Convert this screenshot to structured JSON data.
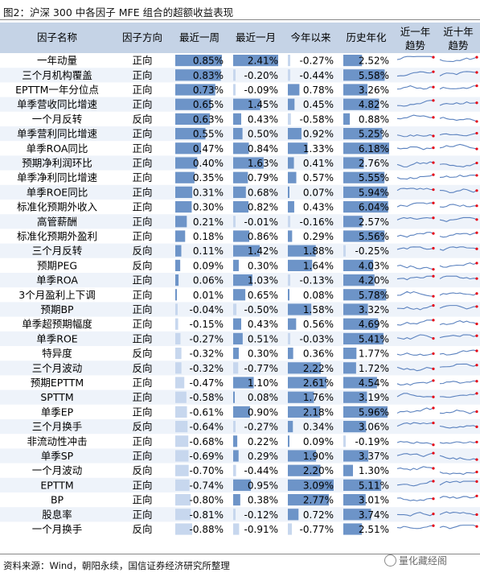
{
  "title": "图2：沪深 300 中各因子 MFE 组合的超额收益表现",
  "source": "资料来源：Wind，朝阳永续，国信证券经济研究所整理",
  "watermark": "量化藏经阁",
  "colors": {
    "header_bg": "#c5d3e6",
    "row_alt": "#eef3fa",
    "bar": "#6d94c8",
    "bar_light": "#c7d7ee",
    "spark": "#5b82bf",
    "spark_dot": "#e60012"
  },
  "chart_data": {
    "type": "table",
    "columns": [
      "因子名称",
      "因子方向",
      "最近一周",
      "最近一月",
      "今年以来",
      "历史年化",
      "近一年趋势",
      "近十年趋势"
    ],
    "rows": [
      {
        "name": "一年动量",
        "dir": "正向",
        "week": "0.85%",
        "month": "2.41%",
        "ytd": "-0.27%",
        "annual": "2.52%"
      },
      {
        "name": "三个月机构覆盖",
        "dir": "正向",
        "week": "0.83%",
        "month": "-0.20%",
        "ytd": "-0.44%",
        "annual": "5.58%"
      },
      {
        "name": "EPTTM一年分位点",
        "dir": "正向",
        "week": "0.73%",
        "month": "-0.09%",
        "ytd": "0.78%",
        "annual": "3.26%"
      },
      {
        "name": "单季营收同比增速",
        "dir": "正向",
        "week": "0.65%",
        "month": "1.45%",
        "ytd": "0.45%",
        "annual": "4.82%"
      },
      {
        "name": "一个月反转",
        "dir": "反向",
        "week": "0.63%",
        "month": "0.43%",
        "ytd": "-0.58%",
        "annual": "0.88%"
      },
      {
        "name": "单季营利同比增速",
        "dir": "正向",
        "week": "0.55%",
        "month": "0.50%",
        "ytd": "0.92%",
        "annual": "5.25%"
      },
      {
        "name": "单季ROA同比",
        "dir": "正向",
        "week": "0.47%",
        "month": "0.84%",
        "ytd": "1.33%",
        "annual": "6.18%"
      },
      {
        "name": "预期净利润环比",
        "dir": "正向",
        "week": "0.40%",
        "month": "1.63%",
        "ytd": "0.41%",
        "annual": "2.76%"
      },
      {
        "name": "单季净利同比增速",
        "dir": "正向",
        "week": "0.35%",
        "month": "0.79%",
        "ytd": "0.57%",
        "annual": "5.55%"
      },
      {
        "name": "单季ROE同比",
        "dir": "正向",
        "week": "0.31%",
        "month": "0.68%",
        "ytd": "0.07%",
        "annual": "5.94%"
      },
      {
        "name": "标准化预期外收入",
        "dir": "正向",
        "week": "0.30%",
        "month": "0.82%",
        "ytd": "0.43%",
        "annual": "6.04%"
      },
      {
        "name": "高管薪酬",
        "dir": "正向",
        "week": "0.21%",
        "month": "-0.01%",
        "ytd": "-0.16%",
        "annual": "2.57%"
      },
      {
        "name": "标准化预期外盈利",
        "dir": "正向",
        "week": "0.18%",
        "month": "0.86%",
        "ytd": "0.29%",
        "annual": "5.56%"
      },
      {
        "name": "三个月反转",
        "dir": "反向",
        "week": "0.11%",
        "month": "1.42%",
        "ytd": "1.88%",
        "annual": "-0.25%"
      },
      {
        "name": "预期PEG",
        "dir": "反向",
        "week": "0.09%",
        "month": "0.30%",
        "ytd": "1.64%",
        "annual": "4.03%"
      },
      {
        "name": "单季ROA",
        "dir": "正向",
        "week": "0.06%",
        "month": "1.03%",
        "ytd": "-0.13%",
        "annual": "4.20%"
      },
      {
        "name": "3个月盈利上下调",
        "dir": "正向",
        "week": "0.01%",
        "month": "0.65%",
        "ytd": "0.08%",
        "annual": "5.78%"
      },
      {
        "name": "预期BP",
        "dir": "正向",
        "week": "-0.04%",
        "month": "-0.50%",
        "ytd": "1.58%",
        "annual": "3.32%"
      },
      {
        "name": "单季超预期幅度",
        "dir": "正向",
        "week": "-0.15%",
        "month": "0.43%",
        "ytd": "0.56%",
        "annual": "4.69%"
      },
      {
        "name": "单季ROE",
        "dir": "正向",
        "week": "-0.27%",
        "month": "0.51%",
        "ytd": "-0.03%",
        "annual": "5.41%"
      },
      {
        "name": "特异度",
        "dir": "反向",
        "week": "-0.32%",
        "month": "0.30%",
        "ytd": "0.36%",
        "annual": "1.77%"
      },
      {
        "name": "三个月波动",
        "dir": "反向",
        "week": "-0.32%",
        "month": "-0.77%",
        "ytd": "2.22%",
        "annual": "1.72%"
      },
      {
        "name": "预期EPTTM",
        "dir": "正向",
        "week": "-0.47%",
        "month": "1.10%",
        "ytd": "2.61%",
        "annual": "4.54%"
      },
      {
        "name": "SPTTM",
        "dir": "正向",
        "week": "-0.58%",
        "month": "0.08%",
        "ytd": "1.76%",
        "annual": "3.19%"
      },
      {
        "name": "单季EP",
        "dir": "正向",
        "week": "-0.61%",
        "month": "0.90%",
        "ytd": "2.18%",
        "annual": "5.96%"
      },
      {
        "name": "三个月换手",
        "dir": "反向",
        "week": "-0.64%",
        "month": "-0.27%",
        "ytd": "0.34%",
        "annual": "3.06%"
      },
      {
        "name": "非流动性冲击",
        "dir": "正向",
        "week": "-0.68%",
        "month": "0.22%",
        "ytd": "0.09%",
        "annual": "-0.19%"
      },
      {
        "name": "单季SP",
        "dir": "正向",
        "week": "-0.69%",
        "month": "0.29%",
        "ytd": "1.90%",
        "annual": "3.37%"
      },
      {
        "name": "一个月波动",
        "dir": "反向",
        "week": "-0.70%",
        "month": "-0.44%",
        "ytd": "2.20%",
        "annual": "1.30%"
      },
      {
        "name": "EPTTM",
        "dir": "正向",
        "week": "-0.74%",
        "month": "0.95%",
        "ytd": "3.09%",
        "annual": "5.11%"
      },
      {
        "name": "BP",
        "dir": "正向",
        "week": "-0.80%",
        "month": "0.38%",
        "ytd": "2.77%",
        "annual": "3.01%"
      },
      {
        "name": "股息率",
        "dir": "正向",
        "week": "-0.81%",
        "month": "-0.12%",
        "ytd": "0.72%",
        "annual": "3.74%"
      },
      {
        "name": "一个月换手",
        "dir": "反向",
        "week": "-0.88%",
        "month": "-0.91%",
        "ytd": "-0.77%",
        "annual": "2.51%"
      }
    ]
  }
}
